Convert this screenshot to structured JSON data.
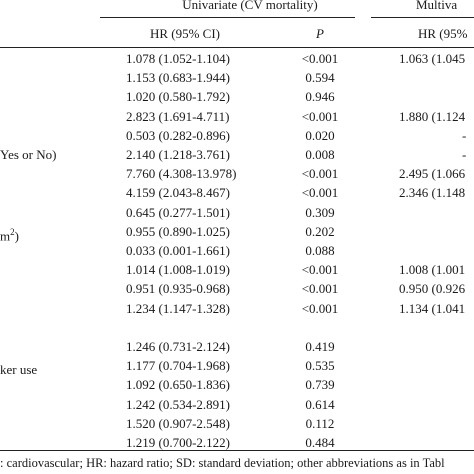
{
  "header": {
    "univariate_group": "Univariate (CV mortality)",
    "multivariate_group": "Multiva",
    "univariate_hr_label": "HR (95% CI)",
    "univariate_p_label": "P",
    "multivariate_hr_label": "HR (95%"
  },
  "row_labels": {
    "yes_or_no": "Yes or No)",
    "m2": "m",
    "m2_sup": "2",
    "m2_close": ")",
    "ker_use": "ker use"
  },
  "rows": [
    {
      "hr": "1.078 (1.052-1.104)",
      "p": "<0.001",
      "mhr": "1.063 (1.045"
    },
    {
      "hr": "1.153 (0.683-1.944)",
      "p": "0.594",
      "mhr": ""
    },
    {
      "hr": "1.020 (0.580-1.792)",
      "p": "0.946",
      "mhr": ""
    },
    {
      "hr": "2.823 (1.691-4.711)",
      "p": "<0.001",
      "mhr": "1.880 (1.124"
    },
    {
      "hr": "0.503 (0.282-0.896)",
      "p": "0.020",
      "mhr": "-"
    },
    {
      "hr": "2.140 (1.218-3.761)",
      "p": "0.008",
      "mhr": "-"
    },
    {
      "hr": "7.760 (4.308-13.978)",
      "p": "<0.001",
      "mhr": "2.495 (1.066"
    },
    {
      "hr": "4.159 (2.043-8.467)",
      "p": "<0.001",
      "mhr": "2.346 (1.148"
    },
    {
      "hr": "0.645 (0.277-1.501)",
      "p": "0.309",
      "mhr": ""
    },
    {
      "hr": "0.955 (0.890-1.025)",
      "p": "0.202",
      "mhr": ""
    },
    {
      "hr": "0.033 (0.001-1.661)",
      "p": "0.088",
      "mhr": ""
    },
    {
      "hr": "1.014 (1.008-1.019)",
      "p": "<0.001",
      "mhr": "1.008 (1.001"
    },
    {
      "hr": "0.951 (0.935-0.968)",
      "p": "<0.001",
      "mhr": "0.950 (0.926"
    },
    {
      "hr": "1.234 (1.147-1.328)",
      "p": "<0.001",
      "mhr": "1.134 (1.041"
    },
    {
      "hr": "",
      "p": "",
      "mhr": ""
    },
    {
      "hr": "1.246 (0.731-2.124)",
      "p": "0.419",
      "mhr": ""
    },
    {
      "hr": "1.177 (0.704-1.968)",
      "p": "0.535",
      "mhr": ""
    },
    {
      "hr": "1.092 (0.650-1.836)",
      "p": "0.739",
      "mhr": ""
    },
    {
      "hr": "1.242 (0.534-2.891)",
      "p": "0.614",
      "mhr": ""
    },
    {
      "hr": "1.520 (0.907-2.548)",
      "p": "0.112",
      "mhr": ""
    },
    {
      "hr": "1.219 (0.700-2.122)",
      "p": "0.484",
      "mhr": ""
    }
  ],
  "footnote": ": cardiovascular; HR: hazard ratio; SD: standard deviation; other abbreviations as in Tabl"
}
